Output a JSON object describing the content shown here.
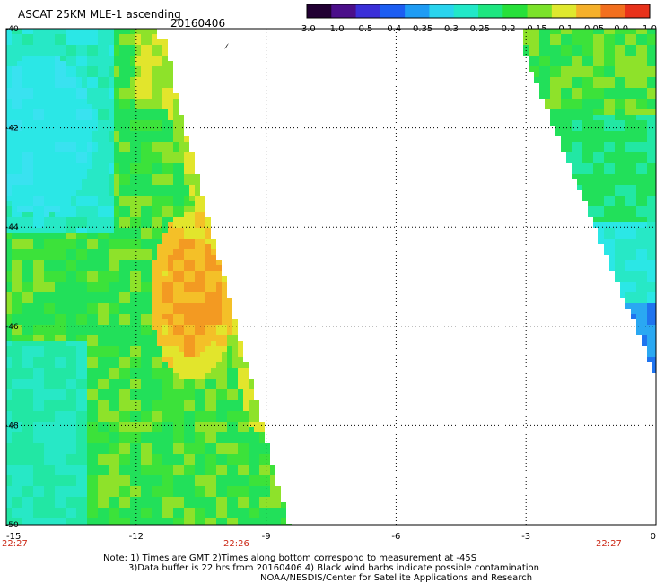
{
  "title": "ASCAT 25KM MLE-1 ascending",
  "date": "20160406",
  "colorbar": {
    "labels": [
      "-3.0",
      "-1.0",
      "-0.5",
      "-0.4",
      "-0.35",
      "-0.3",
      "-0.25",
      "-0.2",
      "-0.15",
      "-0.1",
      "-0.05",
      "0.0",
      "1.0"
    ],
    "colors": [
      "#220033",
      "#4b0f8a",
      "#3a2fd8",
      "#1d5ef2",
      "#1f9cf4",
      "#29d4ee",
      "#22e8c8",
      "#1ee680",
      "#27e03a",
      "#7be22a",
      "#dfe82e",
      "#f5b02a",
      "#f26f1e",
      "#e8321b"
    ]
  },
  "map": {
    "lon_labels": [
      "-15",
      "-12",
      "-9",
      "-6",
      "-3",
      "0"
    ],
    "lat_labels": [
      "-40",
      "-42",
      "-44",
      "-46",
      "-48",
      "-50"
    ],
    "time_labels": [
      "22:27",
      "22:26",
      "22:27"
    ],
    "time_color": "#cc2a18"
  },
  "notes": [
    "Note: 1) Times are GMT 2)Times along bottom correspond to measurement at -45S",
    "3)Data buffer is 22 hrs from 20160406 4) Black wind barbs indicate possible contamination",
    "NOAA/NESDIS/Center for Satellite Applications and Research"
  ]
}
